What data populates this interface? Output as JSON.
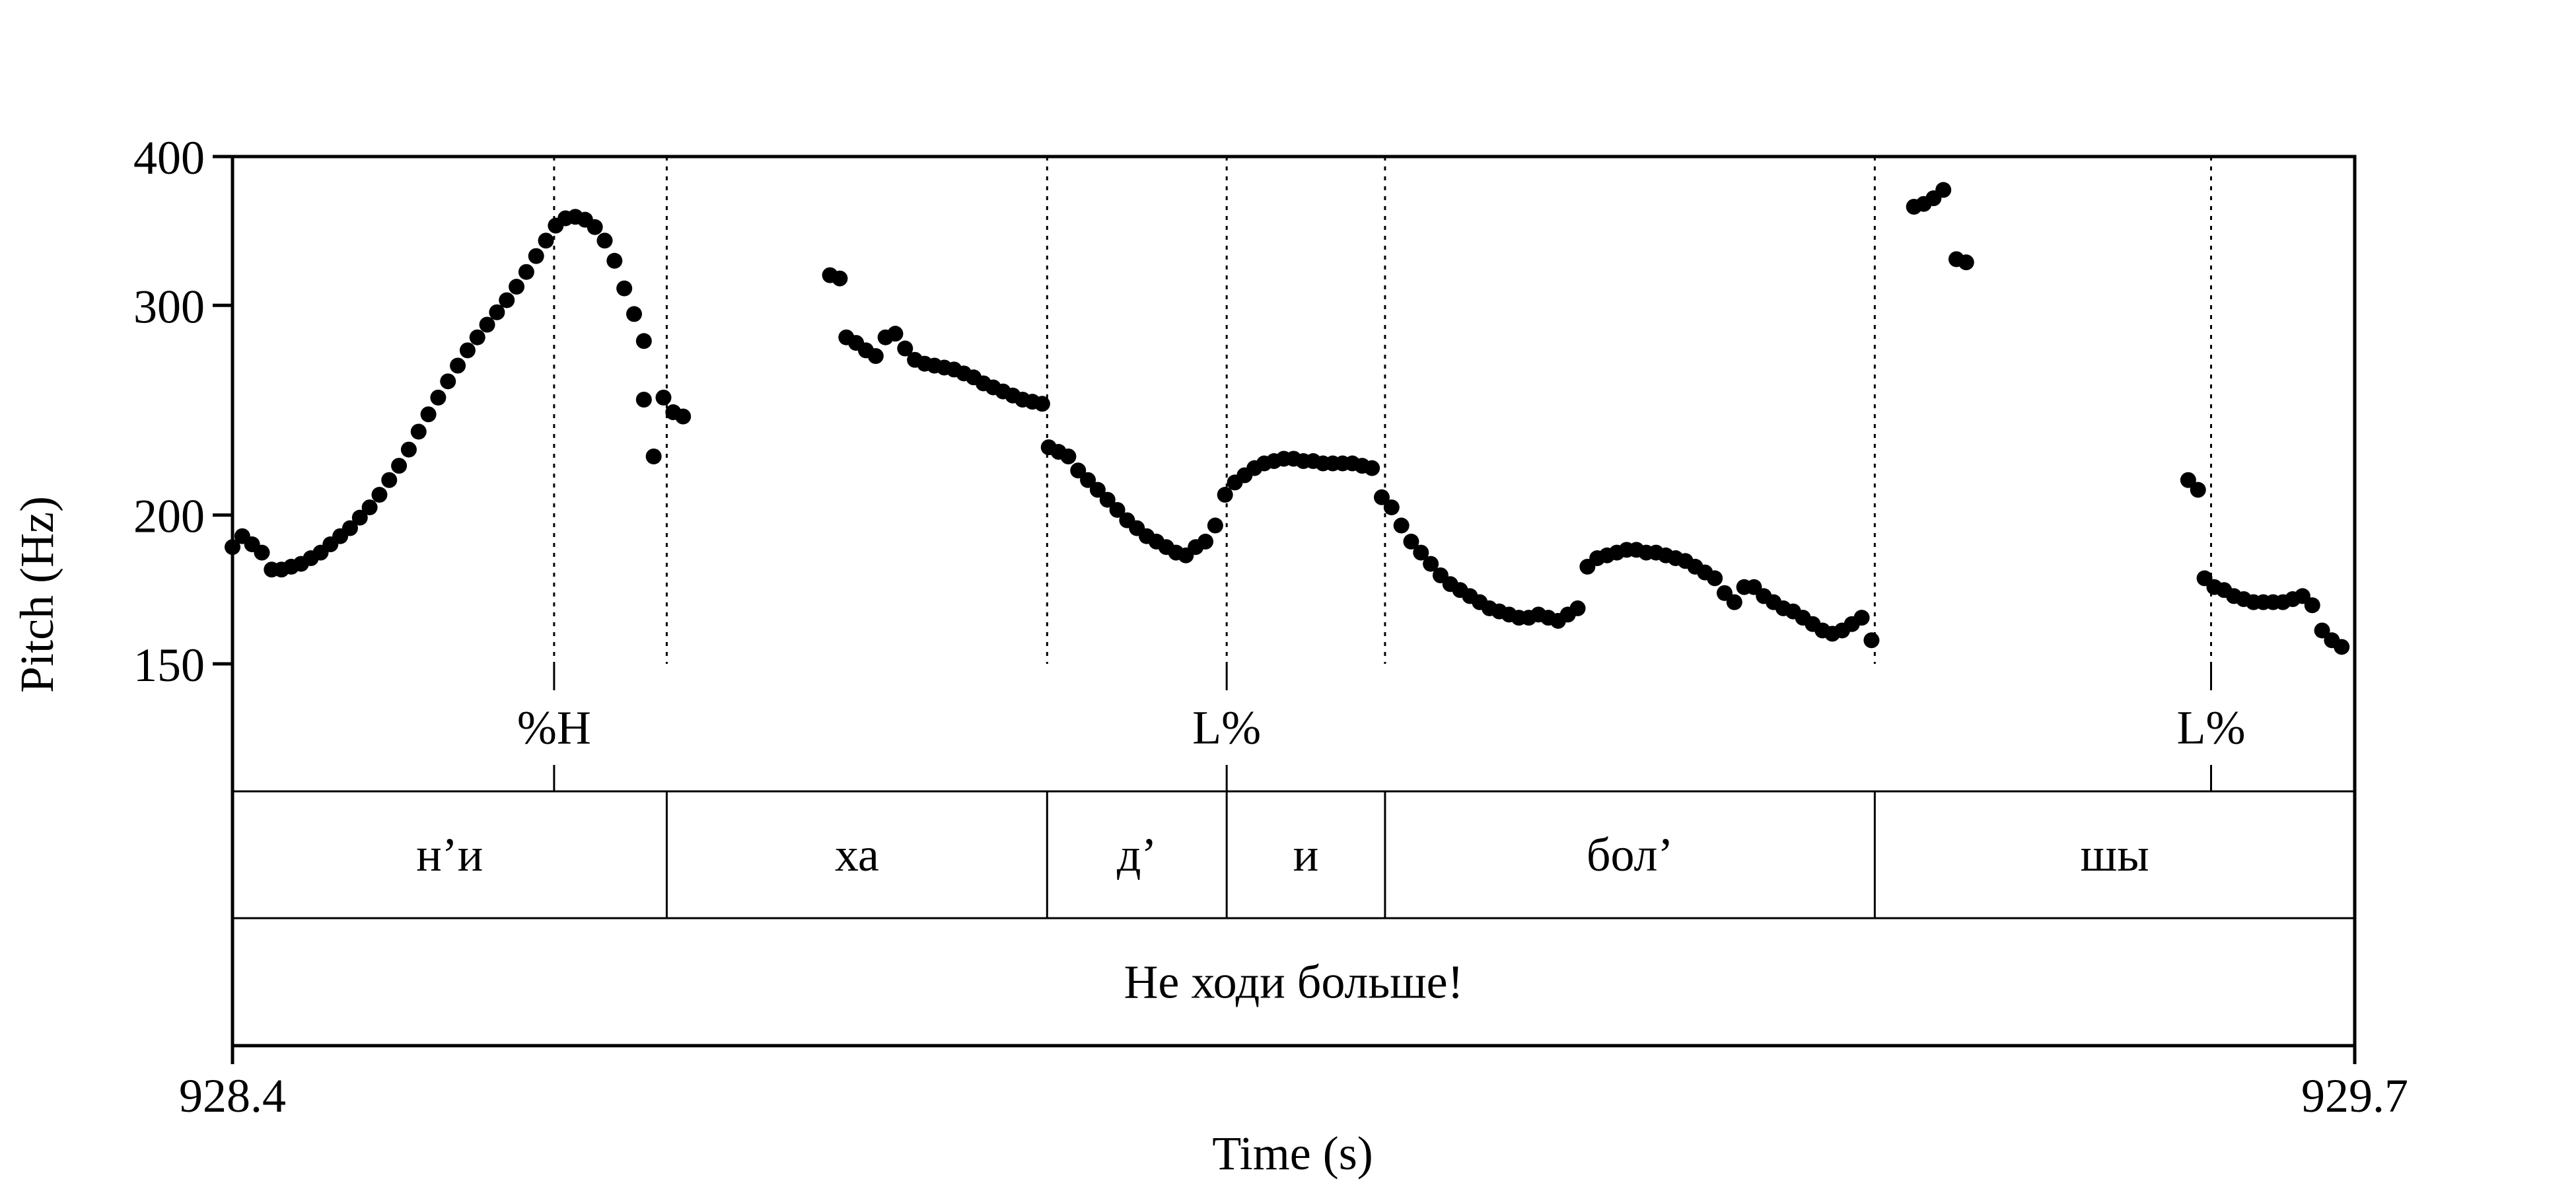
{
  "chart_data": {
    "type": "scatter",
    "xlabel": "Time (s)",
    "ylabel": "Pitch (Hz)",
    "xlim": [
      928.4,
      929.7
    ],
    "ylim": [
      150,
      400
    ],
    "y_scale": "log",
    "x_ticks": [
      {
        "value": 928.4,
        "label": "928.4"
      },
      {
        "value": 929.7,
        "label": "929.7"
      }
    ],
    "y_ticks": [
      {
        "value": 400,
        "label": "400"
      },
      {
        "value": 300,
        "label": "300"
      },
      {
        "value": 200,
        "label": "200"
      },
      {
        "value": 150,
        "label": "150"
      }
    ],
    "grid": false,
    "point_color": "#000000",
    "annotation_lines": [
      928.597,
      928.666,
      928.899,
      929.009,
      929.106,
      929.406,
      929.612
    ],
    "tiers": [
      {
        "name": "tones",
        "intervals": [],
        "points": [
          {
            "time": 928.597,
            "label": "%H"
          },
          {
            "time": 929.009,
            "label": "L%"
          },
          {
            "time": 929.612,
            "label": "L%"
          }
        ]
      },
      {
        "name": "syllables",
        "intervals": [
          {
            "start": 928.4,
            "end": 928.666,
            "label": "н’и"
          },
          {
            "start": 928.666,
            "end": 928.899,
            "label": "ха"
          },
          {
            "start": 928.899,
            "end": 929.009,
            "label": "д’"
          },
          {
            "start": 929.009,
            "end": 929.106,
            "label": "и"
          },
          {
            "start": 929.106,
            "end": 929.406,
            "label": "бол’"
          },
          {
            "start": 929.406,
            "end": 929.7,
            "label": "шы"
          }
        ],
        "points": []
      },
      {
        "name": "utterance",
        "intervals": [
          {
            "start": 928.4,
            "end": 929.7,
            "label": "Не ходи больше!"
          }
        ],
        "points": []
      }
    ],
    "pitch_segments": [
      {
        "x": [
          928.4,
          928.406,
          928.412,
          928.418,
          928.424,
          928.43,
          928.436,
          928.442,
          928.448,
          928.454,
          928.46,
          928.466,
          928.472,
          928.478,
          928.484,
          928.49,
          928.496,
          928.502,
          928.508,
          928.514,
          928.52,
          928.526,
          928.532,
          928.538,
          928.544,
          928.55,
          928.556,
          928.562,
          928.568,
          928.574,
          928.58,
          928.586,
          928.592,
          928.598,
          928.604,
          928.61,
          928.616,
          928.622,
          928.628,
          928.634,
          928.64,
          928.646,
          928.652
        ],
        "y": [
          188,
          192,
          189,
          186,
          180,
          180,
          181,
          182,
          184,
          186,
          189,
          192,
          195,
          199,
          203,
          208,
          214,
          220,
          227,
          235,
          243,
          251,
          259,
          267,
          275,
          282,
          289,
          296,
          303,
          311,
          320,
          330,
          340,
          350,
          355,
          356,
          354,
          349,
          340,
          327,
          310,
          295,
          280
        ]
      },
      {
        "x": [
          928.652,
          928.658
        ],
        "y": [
          250,
          224
        ]
      },
      {
        "x": [
          928.664,
          928.67,
          928.676
        ],
        "y": [
          251,
          244,
          242
        ]
      },
      {
        "x": [
          928.766,
          928.772
        ],
        "y": [
          318,
          316
        ]
      },
      {
        "x": [
          928.776,
          928.782,
          928.788,
          928.794,
          928.8,
          928.806,
          928.812,
          928.818,
          928.824,
          928.83,
          928.836,
          928.842,
          928.848,
          928.854,
          928.86,
          928.866,
          928.872,
          928.878,
          928.884,
          928.89,
          928.896
        ],
        "y": [
          282,
          279,
          275,
          272,
          282,
          284,
          276,
          270,
          268,
          267,
          266,
          265,
          263,
          261,
          258,
          256,
          254,
          252,
          250,
          249,
          248
        ]
      },
      {
        "x": [
          928.9,
          928.906,
          928.912,
          928.918,
          928.924,
          928.93,
          928.936,
          928.942,
          928.948,
          928.954,
          928.96,
          928.966,
          928.972,
          928.978,
          928.984,
          928.99,
          928.996,
          929.002
        ],
        "y": [
          228,
          226,
          224,
          218,
          214,
          210,
          206,
          202,
          198,
          195,
          192,
          190,
          188,
          186,
          185,
          188,
          190,
          196
        ]
      },
      {
        "x": [
          929.008,
          929.014,
          929.02,
          929.026,
          929.032,
          929.038,
          929.044,
          929.05,
          929.056,
          929.062,
          929.068,
          929.074,
          929.08,
          929.086,
          929.092,
          929.098
        ],
        "y": [
          208,
          213,
          216,
          219,
          221,
          222,
          223,
          223,
          222,
          222,
          221,
          221,
          221,
          221,
          220,
          219
        ]
      },
      {
        "x": [
          929.104,
          929.11,
          929.116,
          929.122,
          929.128,
          929.134,
          929.14,
          929.146,
          929.152,
          929.158,
          929.164,
          929.17,
          929.176,
          929.182,
          929.188,
          929.194,
          929.2,
          929.206,
          929.212,
          929.218,
          929.224
        ],
        "y": [
          207,
          203,
          196,
          190,
          186,
          182,
          178,
          175,
          173,
          171,
          169,
          167,
          166,
          165,
          164,
          164,
          165,
          164,
          163,
          165,
          167
        ]
      },
      {
        "x": [
          929.23,
          929.236,
          929.242,
          929.248,
          929.254,
          929.26,
          929.266,
          929.272,
          929.278,
          929.284,
          929.29,
          929.296,
          929.302,
          929.308,
          929.314,
          929.32,
          929.326,
          929.332,
          929.338,
          929.344,
          929.35,
          929.356,
          929.362,
          929.368,
          929.374,
          929.38,
          929.386,
          929.392,
          929.398,
          929.404
        ],
        "y": [
          181,
          184,
          185,
          186,
          187,
          187,
          186,
          186,
          185,
          184,
          183,
          181,
          179,
          177,
          172,
          169,
          174,
          174,
          171,
          169,
          167,
          166,
          164,
          162,
          160,
          159,
          160,
          162,
          164,
          157
        ]
      },
      {
        "x": [
          929.43,
          929.436,
          929.442,
          929.448
        ],
        "y": [
          363,
          365,
          369,
          375
        ]
      },
      {
        "x": [
          929.456,
          929.462
        ],
        "y": [
          328,
          326
        ]
      },
      {
        "x": [
          929.598,
          929.604
        ],
        "y": [
          214,
          210
        ]
      },
      {
        "x": [
          929.608,
          929.614,
          929.62,
          929.626,
          929.632,
          929.638,
          929.644,
          929.65,
          929.656,
          929.662,
          929.668,
          929.674,
          929.68,
          929.686,
          929.692
        ],
        "y": [
          177,
          174,
          173,
          171,
          170,
          169,
          169,
          169,
          169,
          170,
          171,
          168,
          160,
          157,
          155
        ]
      }
    ]
  }
}
